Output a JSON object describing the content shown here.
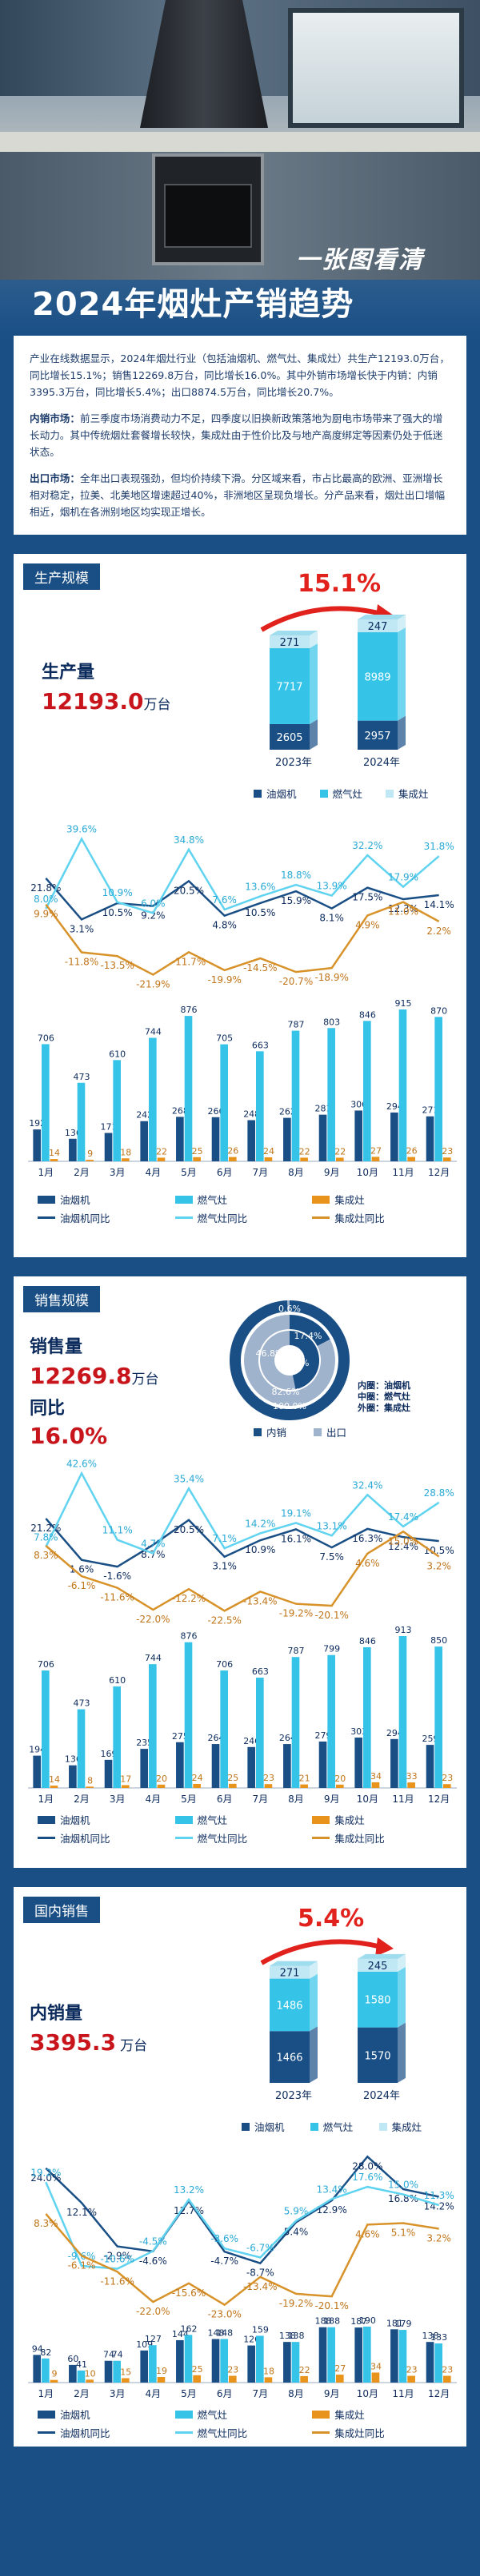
{
  "hero": {
    "subtitle": "一张图看清",
    "title": "2024年烟灶产销趋势"
  },
  "intro": {
    "p1": "产业在线数据显示，2024年烟灶行业（包括油烟机、燃气灶、集成灶）共生产12193.0万台，同比增长15.1%；销售12269.8万台，同比增长16.0%。其中外销市场增长快于内销：内销3395.3万台，同比增长5.4%；出口8874.5万台，同比增长20.7%。",
    "p2_head": "内销市场：",
    "p2": "前三季度市场消费动力不足，四季度以旧换新政策落地为厨电市场带来了强大的增长动力。其中传统烟灶套餐增长较快，集成灶由于性价比及与地产高度绑定等因素仍处于低迷状态。",
    "p3_head": "出口市场：",
    "p3": "全年出口表现强劲，但均价持续下滑。分区域来看，市占比最高的欧洲、亚洲增长相对稳定，拉美、北美地区增速超过40%，非洲地区呈现负增长。分产品来看，烟灶出口增幅相近，烟机在各洲别地区均实现正增长。"
  },
  "production": {
    "tab": "生产规模",
    "label": "生产量",
    "value": "12193.0",
    "unit": "万台",
    "growth": "15.1%",
    "stack": {
      "years": [
        "2023年",
        "2024年"
      ],
      "hood": [
        2605,
        2957
      ],
      "stove": [
        7717,
        8989
      ],
      "integrated": [
        271,
        247
      ],
      "hood_label": [
        "2605",
        "2957"
      ],
      "stove_label": [
        "7717",
        "8989"
      ],
      "integrated_label": [
        "271",
        "247"
      ]
    },
    "legend": [
      "油烟机",
      "燃气灶",
      "集成灶"
    ]
  },
  "sales": {
    "tab": "销售规模",
    "label": "销售量",
    "value": "12269.8",
    "unit": "万台",
    "yoy_label": "同比",
    "yoy": "16.0%",
    "donut": {
      "labels": [
        "0.6%",
        "17.4%",
        "46.8%",
        "53.2%",
        "82.6%",
        "100.0%"
      ],
      "legend_in": "内销",
      "legend_out": "出口",
      "ring_legend": [
        "内圈：油烟机",
        "中圈：燃气灶",
        "外圈：集成灶"
      ]
    }
  },
  "domestic": {
    "tab": "国内销售",
    "label": "内销量",
    "value": "3395.3",
    "unit": "万台",
    "growth": "5.4%",
    "stack": {
      "years": [
        "2023年",
        "2024年"
      ],
      "hood": [
        1466,
        1570
      ],
      "stove": [
        1486,
        1580
      ],
      "integrated": [
        271,
        245
      ],
      "hood_label": [
        "1466",
        "1570"
      ],
      "stove_label": [
        "1486",
        "1580"
      ],
      "integrated_label": [
        "271",
        "245"
      ]
    },
    "legend": [
      "油烟机",
      "燃气灶",
      "集成灶"
    ]
  },
  "chart_legend": [
    "油烟机",
    "燃气灶",
    "集成灶",
    "油烟机同比",
    "燃气灶同比",
    "集成灶同比"
  ],
  "colors": {
    "hood": "#1a4f86",
    "stove": "#35c3e8",
    "integrated": "#e8931c",
    "hood_line": "#1a4f86",
    "stove_line": "#5fd3ef",
    "integrated_line": "#d8922a",
    "accent": "#e0211c"
  },
  "chart_data": [
    {
      "type": "bar",
      "name_ref": "production_monthly",
      "categories": [
        "1月",
        "2月",
        "3月",
        "4月",
        "5月",
        "6月",
        "7月",
        "8月",
        "9月",
        "10月",
        "11月",
        "12月"
      ],
      "series": [
        {
          "name": "油烟机",
          "values": [
            192,
            136,
            171,
            242,
            268,
            266,
            248,
            262,
            281,
            306,
            294,
            271
          ]
        },
        {
          "name": "燃气灶",
          "values": [
            706,
            473,
            610,
            744,
            876,
            705,
            663,
            787,
            803,
            846,
            915,
            870
          ]
        },
        {
          "name": "集成灶",
          "values": [
            14,
            9,
            18,
            22,
            25,
            26,
            24,
            22,
            22,
            27,
            26,
            23
          ]
        },
        {
          "name": "油烟机同比",
          "values": [
            "21.8%",
            "3.1%",
            "10.5%",
            "9.2%",
            "20.5%",
            "4.8%",
            "10.5%",
            "15.9%",
            "8.1%",
            "17.5%",
            "12.3%",
            "14.1%"
          ]
        },
        {
          "name": "燃气灶同比",
          "values": [
            "8.0%",
            "39.6%",
            "10.9%",
            "6.0%",
            "34.8%",
            "7.6%",
            "13.6%",
            "18.8%",
            "13.9%",
            "32.2%",
            "17.9%",
            "31.8%"
          ]
        },
        {
          "name": "集成灶同比",
          "values": [
            "9.9%",
            "-11.8%",
            "-13.5%",
            "-21.9%",
            "-11.7%",
            "-19.9%",
            "-14.5%",
            "-20.7%",
            "-18.9%",
            "4.9%",
            "11.0%",
            "2.2%"
          ]
        }
      ]
    },
    {
      "type": "bar",
      "name_ref": "sales_monthly",
      "categories": [
        "1月",
        "2月",
        "3月",
        "4月",
        "5月",
        "6月",
        "7月",
        "8月",
        "9月",
        "10月",
        "11月",
        "12月"
      ],
      "series": [
        {
          "name": "油烟机",
          "values": [
            194,
            136,
            169,
            235,
            275,
            264,
            246,
            264,
            279,
            303,
            294,
            259
          ]
        },
        {
          "name": "燃气灶",
          "values": [
            706,
            473,
            610,
            744,
            876,
            706,
            663,
            787,
            799,
            846,
            913,
            850
          ]
        },
        {
          "name": "集成灶",
          "values": [
            14,
            8,
            17,
            20,
            24,
            25,
            23,
            21,
            20,
            34,
            33,
            23
          ]
        },
        {
          "name": "油烟机同比",
          "values": [
            "21.2%",
            "1.6%",
            "-1.6%",
            "8.7%",
            "20.5%",
            "3.1%",
            "10.9%",
            "16.1%",
            "7.5%",
            "16.3%",
            "12.4%",
            "10.5%"
          ]
        },
        {
          "name": "燃气灶同比",
          "values": [
            "7.8%",
            "42.6%",
            "11.1%",
            "4.7%",
            "35.4%",
            "7.1%",
            "14.2%",
            "19.1%",
            "13.1%",
            "32.4%",
            "17.4%",
            "28.8%"
          ]
        },
        {
          "name": "集成灶同比",
          "values": [
            "8.3%",
            "-6.1%",
            "-11.6%",
            "-22.0%",
            "-12.2%",
            "-22.5%",
            "-13.4%",
            "-19.2%",
            "-20.1%",
            "4.6%",
            "15.0%",
            "3.2%"
          ]
        }
      ]
    },
    {
      "type": "bar",
      "name_ref": "domestic_monthly",
      "categories": [
        "1月",
        "2月",
        "3月",
        "4月",
        "5月",
        "6月",
        "7月",
        "8月",
        "9月",
        "10月",
        "11月",
        "12月"
      ],
      "series": [
        {
          "name": "油烟机",
          "values": [
            94,
            60,
            74,
            109,
            144,
            148,
            126,
            138,
            188,
            187,
            181,
            138
          ]
        },
        {
          "name": "燃气灶",
          "values": [
            82,
            41,
            74,
            127,
            162,
            148,
            159,
            138,
            188,
            190,
            179,
            133
          ]
        },
        {
          "name": "集成灶",
          "values": [
            9,
            10,
            15,
            19,
            25,
            23,
            18,
            22,
            27,
            34,
            23,
            23
          ]
        },
        {
          "name": "油烟机同比",
          "values": [
            "24.0%",
            "12.1%",
            "-2.9%",
            "-4.6%",
            "12.7%",
            "-4.7%",
            "-8.7%",
            "5.4%",
            "12.9%",
            "28.0%",
            "16.8%",
            "14.2%"
          ]
        },
        {
          "name": "燃气灶同比",
          "values": [
            "19.2%",
            "-9.6%",
            "-10.6%",
            "-4.5%",
            "13.2%",
            "-3.6%",
            "-6.7%",
            "5.9%",
            "13.4%",
            "17.6%",
            "15.0%",
            "11.3%"
          ]
        },
        {
          "name": "集成灶同比",
          "values": [
            "8.3%",
            "-6.1%",
            "-11.6%",
            "-22.0%",
            "-15.6%",
            "-23.0%",
            "-13.4%",
            "-19.2%",
            "-20.1%",
            "4.6%",
            "5.1%",
            "3.2%"
          ]
        }
      ]
    }
  ]
}
